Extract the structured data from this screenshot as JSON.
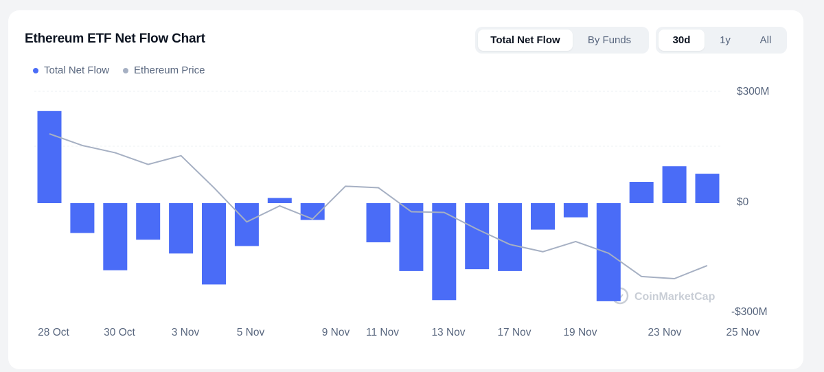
{
  "header": {
    "title": "Ethereum ETF Net Flow Chart"
  },
  "view_toggle": {
    "options": [
      "Total Net Flow",
      "By Funds"
    ],
    "selected": "Total Net Flow"
  },
  "range_toggle": {
    "options": [
      "30d",
      "1y",
      "All"
    ],
    "selected": "30d"
  },
  "legend": [
    {
      "label": "Total Net Flow",
      "color": "#4a6cf7"
    },
    {
      "label": "Ethereum Price",
      "color": "#a6b0c3"
    }
  ],
  "watermark": "CoinMarketCap",
  "chart_data": {
    "type": "bar",
    "title": "Ethereum ETF Net Flow Chart",
    "x_tick_labels": [
      "28 Oct",
      "30 Oct",
      "3 Nov",
      "5 Nov",
      "9 Nov",
      "11 Nov",
      "13 Nov",
      "17 Nov",
      "19 Nov",
      "23 Nov",
      "25 Nov"
    ],
    "y_tick_labels": [
      "$300M",
      "$0",
      "-$300M"
    ],
    "ylim": [
      -300,
      300
    ],
    "y_unit": "$M",
    "grid": false,
    "legend_position": "top-left",
    "series": [
      {
        "name": "Total Net Flow",
        "type": "bar",
        "color": "#4a6cf7",
        "values": [
          247,
          -80,
          -180,
          -98,
          -135,
          -218,
          -115,
          14,
          -45,
          0,
          -105,
          -182,
          -260,
          -177,
          -182,
          -71,
          -38,
          -263,
          57,
          99,
          79
        ]
      },
      {
        "name": "Ethereum Price",
        "type": "line",
        "color": "#a6b0c3",
        "values": [
          3860,
          3780,
          3730,
          3650,
          3710,
          3490,
          3255,
          3365,
          3275,
          3500,
          3490,
          3325,
          3320,
          3205,
          3100,
          3050,
          3120,
          3040,
          2880,
          2865,
          2955
        ]
      }
    ]
  }
}
